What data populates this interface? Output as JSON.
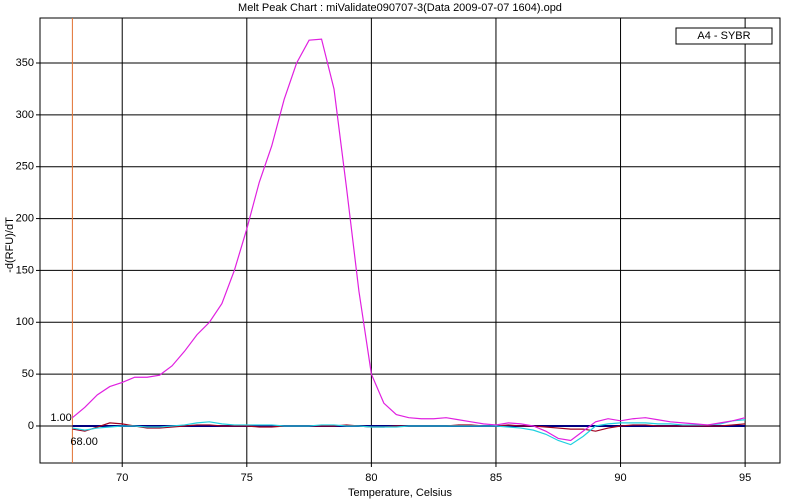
{
  "chart_data": {
    "type": "line",
    "title": "Melt Peak Chart : miValidate090707-3(Data 2009-07-07 1604).opd",
    "x_label": "Temperature, Celsius",
    "y_label": "-d(RFU)/dT",
    "x": [
      68,
      68.5,
      69,
      69.5,
      70,
      70.5,
      71,
      71.5,
      72,
      72.5,
      73,
      73.5,
      74,
      74.5,
      75,
      75.5,
      76,
      76.5,
      77,
      77.5,
      78,
      78.5,
      79,
      79.5,
      80,
      80.5,
      81,
      81.5,
      82,
      82.5,
      83,
      83.5,
      84,
      84.5,
      85,
      85.5,
      86,
      86.5,
      87,
      87.5,
      88,
      88.5,
      89,
      89.5,
      90,
      90.5,
      91,
      91.5,
      92,
      92.5,
      93,
      93.5,
      94,
      94.5,
      95
    ],
    "series": [
      {
        "name": "A4 - SYBR",
        "color": "#e020e0",
        "values": [
          8,
          18,
          30,
          38,
          42,
          47,
          47,
          49,
          58,
          72,
          88,
          100,
          118,
          150,
          190,
          235,
          270,
          315,
          350,
          372,
          373,
          325,
          230,
          130,
          50,
          22,
          11,
          8,
          7,
          7,
          8,
          6,
          4,
          2,
          1,
          3,
          2,
          0,
          -5,
          -12,
          -14,
          -5,
          4,
          7,
          5,
          7,
          8,
          6,
          4,
          3,
          2,
          1,
          3,
          5,
          8
        ]
      },
      {
        "color": "#20d0e0",
        "values": [
          -2,
          -4,
          -2,
          -1,
          0,
          0,
          -1,
          -1,
          0,
          1,
          3,
          4,
          2,
          1,
          1,
          1,
          1,
          0,
          0,
          0,
          1,
          1,
          0,
          0,
          -1,
          -1,
          -1,
          0,
          0,
          0,
          0,
          0,
          0,
          0,
          0,
          -1,
          -2,
          -4,
          -8,
          -14,
          -18,
          -10,
          0,
          2,
          3,
          3,
          3,
          2,
          2,
          1,
          1,
          1,
          2,
          5,
          6
        ]
      },
      {
        "color": "#a00020",
        "values": [
          -3,
          -5,
          -1,
          3,
          2,
          0,
          -2,
          -2,
          -1,
          0,
          1,
          1,
          0,
          0,
          0,
          -1,
          -1,
          0,
          0,
          0,
          0,
          0,
          1,
          0,
          -1,
          -1,
          0,
          0,
          0,
          0,
          0,
          1,
          1,
          0,
          0,
          1,
          0,
          0,
          -1,
          -2,
          -3,
          -3,
          -5,
          -2,
          0,
          1,
          1,
          0,
          0,
          0,
          0,
          0,
          0,
          1,
          2
        ]
      },
      {
        "color": "#000080",
        "values": [
          0,
          0,
          0,
          0,
          0,
          0,
          0,
          0,
          0,
          0,
          0,
          0,
          0,
          0,
          0,
          0,
          0,
          0,
          0,
          0,
          0,
          0,
          0,
          0,
          0,
          0,
          0,
          0,
          0,
          0,
          0,
          0,
          0,
          0,
          0,
          0,
          0,
          0,
          0,
          0,
          0,
          0,
          0,
          0,
          0,
          0,
          0,
          0,
          0,
          0,
          0,
          0,
          0,
          0,
          0
        ]
      }
    ],
    "xlim": [
      66.7,
      96.4
    ],
    "ylim": [
      -35.7,
      393.4
    ],
    "xticks": [
      70,
      75,
      80,
      85,
      90,
      95
    ],
    "yticks": [
      0,
      50,
      100,
      150,
      200,
      250,
      300,
      350
    ],
    "grid": true,
    "cursor": {
      "x": 68,
      "x_label": "68.00",
      "y_label": "1.00",
      "color": "#e07030"
    }
  }
}
